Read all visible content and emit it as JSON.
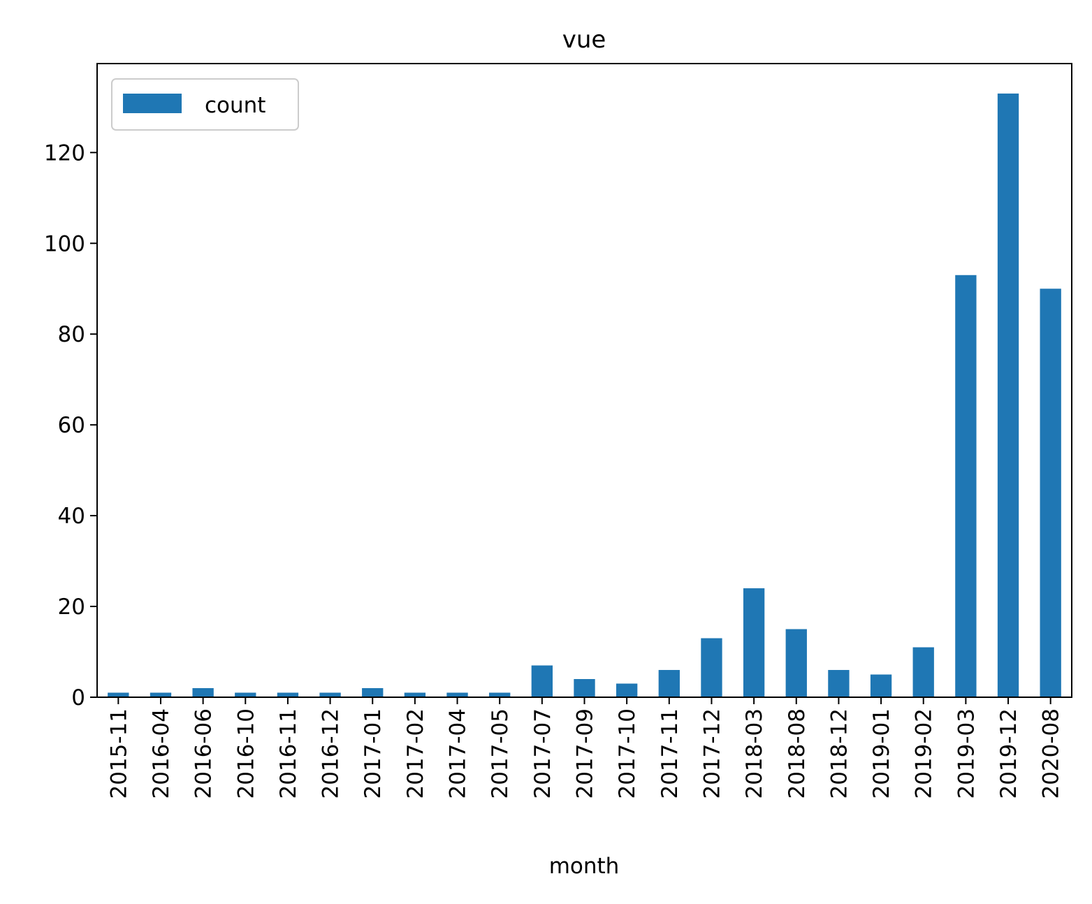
{
  "chart_data": {
    "type": "bar",
    "title": "vue",
    "xlabel": "month",
    "ylabel": "",
    "categories": [
      "2015-11",
      "2016-04",
      "2016-06",
      "2016-10",
      "2016-11",
      "2016-12",
      "2017-01",
      "2017-02",
      "2017-04",
      "2017-05",
      "2017-07",
      "2017-09",
      "2017-10",
      "2017-11",
      "2017-12",
      "2018-03",
      "2018-08",
      "2018-12",
      "2019-01",
      "2019-02",
      "2019-03",
      "2019-12",
      "2020-08"
    ],
    "series": [
      {
        "name": "count",
        "color": "#1f77b4",
        "values": [
          1,
          1,
          2,
          1,
          1,
          1,
          2,
          1,
          1,
          1,
          7,
          4,
          3,
          6,
          13,
          24,
          15,
          6,
          5,
          11,
          93,
          133,
          90
        ]
      }
    ],
    "ylim": [
      0,
      139.6
    ],
    "yticks": [
      0,
      20,
      40,
      60,
      80,
      100,
      120
    ],
    "grid": false,
    "legend": {
      "position": "top-left"
    }
  }
}
